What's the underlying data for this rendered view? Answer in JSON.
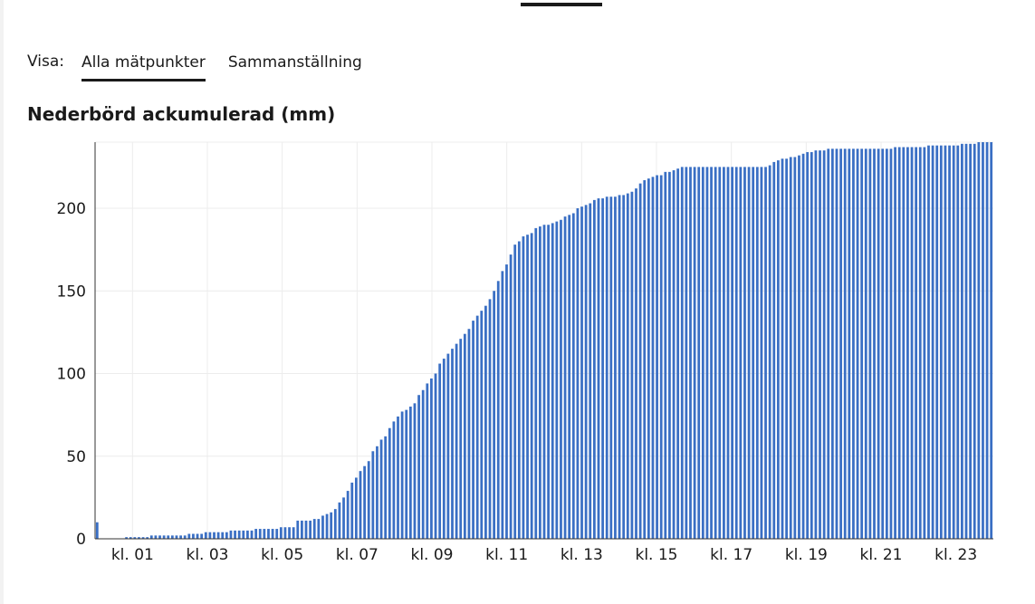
{
  "view_selector": {
    "label": "Visa:",
    "tabs": [
      {
        "label": "Alla mätpunkter",
        "active": true
      },
      {
        "label": "Sammanställning",
        "active": false
      }
    ]
  },
  "chart_data": {
    "type": "bar",
    "title": "Nederbörd ackumulerad (mm)",
    "xlabel": "",
    "ylabel": "",
    "ylim": [
      0,
      240
    ],
    "y_ticks": [
      0,
      50,
      100,
      150,
      200
    ],
    "x_tick_labels": [
      "kl. 01",
      "kl. 03",
      "kl. 05",
      "kl. 07",
      "kl. 09",
      "kl. 11",
      "kl. 13",
      "kl. 15",
      "kl. 17",
      "kl. 19",
      "kl. 21",
      "kl. 23"
    ],
    "x_tick_hours": [
      1,
      3,
      5,
      7,
      9,
      11,
      13,
      15,
      17,
      19,
      21,
      23
    ],
    "x_range_hours": [
      0,
      24
    ],
    "bar_color": "#3a6fc4",
    "grid": true,
    "values": [
      10,
      0,
      0,
      0,
      0,
      0,
      0,
      1,
      1,
      1,
      1,
      1,
      1,
      2,
      2,
      2,
      2,
      2,
      2,
      2,
      2,
      2,
      3,
      3,
      3,
      3,
      4,
      4,
      4,
      4,
      4,
      4,
      5,
      5,
      5,
      5,
      5,
      5,
      6,
      6,
      6,
      6,
      6,
      6,
      7,
      7,
      7,
      7,
      11,
      11,
      11,
      11,
      12,
      12,
      14,
      15,
      16,
      18,
      22,
      25,
      29,
      34,
      37,
      41,
      44,
      47,
      53,
      56,
      60,
      62,
      67,
      71,
      74,
      77,
      78,
      80,
      82,
      87,
      90,
      94,
      97,
      100,
      106,
      109,
      112,
      115,
      118,
      121,
      124,
      127,
      132,
      135,
      138,
      141,
      145,
      150,
      156,
      162,
      166,
      172,
      178,
      180,
      183,
      184,
      185,
      188,
      189,
      190,
      190,
      191,
      192,
      193,
      195,
      196,
      197,
      200,
      201,
      202,
      203,
      205,
      206,
      206,
      207,
      207,
      207,
      208,
      208,
      209,
      210,
      212,
      215,
      217,
      218,
      219,
      220,
      220,
      222,
      222,
      223,
      224,
      225,
      225,
      225,
      225,
      225,
      225,
      225,
      225,
      225,
      225,
      225,
      225,
      225,
      225,
      225,
      225,
      225,
      225,
      225,
      225,
      225,
      226,
      228,
      229,
      230,
      230,
      231,
      231,
      232,
      233,
      234,
      234,
      235,
      235,
      235,
      236,
      236,
      236,
      236,
      236,
      236,
      236,
      236,
      236,
      236,
      236,
      236,
      236,
      236,
      236,
      236,
      237,
      237,
      237,
      237,
      237,
      237,
      237,
      237,
      238,
      238,
      238,
      238,
      238,
      238,
      238,
      238,
      239,
      239,
      239,
      239,
      240,
      240,
      240,
      240
    ]
  }
}
